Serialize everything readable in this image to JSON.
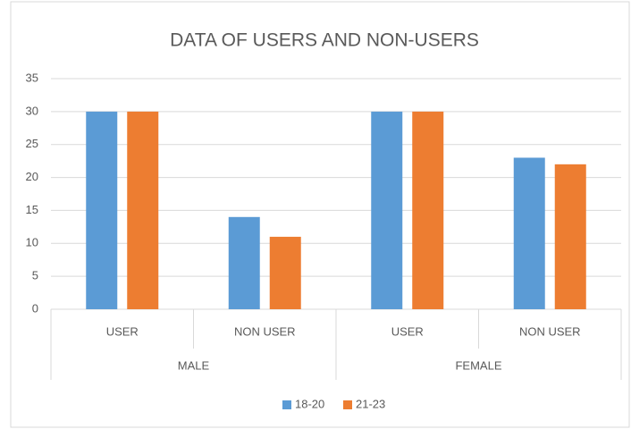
{
  "chart_data": {
    "type": "bar",
    "title": "DATA OF USERS AND NON-USERS",
    "categories": [
      "USER",
      "NON USER",
      "USER",
      "NON USER"
    ],
    "groups": [
      "MALE",
      "FEMALE"
    ],
    "series": [
      {
        "name": "18-20",
        "color": "#5b9bd5",
        "values": [
          30,
          14,
          30,
          23
        ]
      },
      {
        "name": "21-23",
        "color": "#ed7d31",
        "values": [
          30,
          11,
          30,
          22
        ]
      }
    ],
    "ylim": [
      0,
      35
    ],
    "yticks": [
      0,
      5,
      10,
      15,
      20,
      25,
      30,
      35
    ],
    "grid": true,
    "legend": "bottom"
  }
}
